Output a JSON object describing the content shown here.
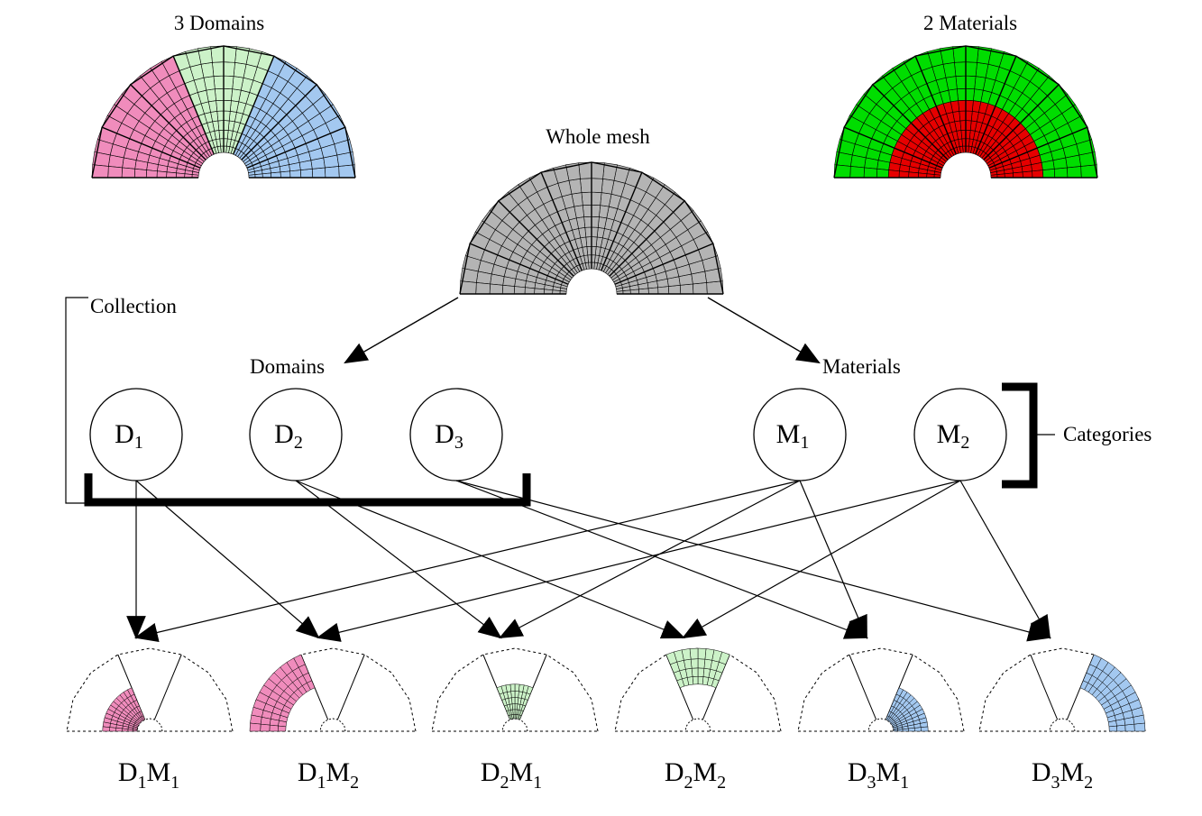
{
  "labels": {
    "domains_title": "3 Domains",
    "materials_title": "2 Materials",
    "whole_mesh": "Whole mesh",
    "collection": "Collection",
    "domains": "Domains",
    "materials": "Materials",
    "categories": "Categories"
  },
  "colors": {
    "domain_1": "#f08cbc",
    "domain_2": "#ccf2c8",
    "domain_3": "#a3c8f0",
    "material_1": "#e60000",
    "material_2": "#00dd00",
    "whole_mesh": "#b4b4b4"
  },
  "domain_nodes": [
    {
      "letter": "D",
      "index": "1"
    },
    {
      "letter": "D",
      "index": "2"
    },
    {
      "letter": "D",
      "index": "3"
    }
  ],
  "material_nodes": [
    {
      "letter": "M",
      "index": "1"
    },
    {
      "letter": "M",
      "index": "2"
    }
  ],
  "combinations": [
    {
      "d": "D",
      "di": "1",
      "m": "M",
      "mi": "1"
    },
    {
      "d": "D",
      "di": "1",
      "m": "M",
      "mi": "2"
    },
    {
      "d": "D",
      "di": "2",
      "m": "M",
      "mi": "1"
    },
    {
      "d": "D",
      "di": "2",
      "m": "M",
      "mi": "2"
    },
    {
      "d": "D",
      "di": "3",
      "m": "M",
      "mi": "1"
    },
    {
      "d": "D",
      "di": "3",
      "m": "M",
      "mi": "2"
    }
  ]
}
